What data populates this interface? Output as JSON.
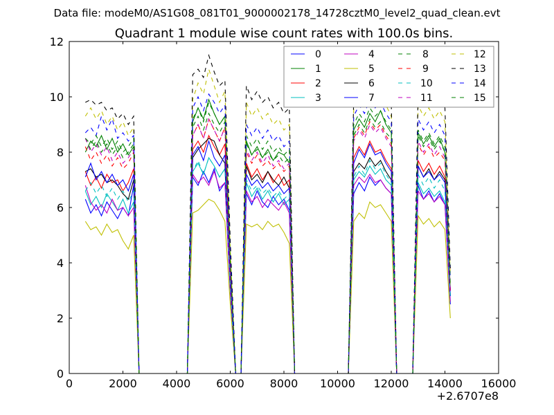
{
  "chart_data": {
    "type": "line",
    "suptitle": "Data file: modeM0/AS1G08_081T01_9000002178_14728cztM0_level2_quad_clean.evt",
    "title": "Quadrant 1 module wise count rates with 100.0s bins.",
    "xlabel": "",
    "ylabel": "",
    "x_offset_label": "+2.6707e8",
    "xlim": [
      0,
      16000
    ],
    "ylim": [
      0,
      12
    ],
    "xticks": [
      "0",
      "2000",
      "4000",
      "6000",
      "8000",
      "10000",
      "12000",
      "14000",
      "16000"
    ],
    "yticks": [
      "0",
      "2",
      "4",
      "6",
      "8",
      "10",
      "12"
    ],
    "legend_placement": "top-right",
    "legend_columns": 4,
    "x": [
      600,
      800,
      1000,
      1200,
      1400,
      1600,
      1800,
      2000,
      2200,
      2400,
      2600,
      2800,
      3000,
      3200,
      3400,
      3600,
      3800,
      4000,
      4200,
      4400,
      4600,
      4800,
      5000,
      5200,
      5400,
      5600,
      5800,
      6000,
      6200,
      6400,
      6600,
      6800,
      7000,
      7200,
      7400,
      7600,
      7800,
      8000,
      8200,
      8400,
      8600,
      8800,
      9000,
      9200,
      9400,
      9600,
      9800,
      10000,
      10200,
      10400,
      10600,
      10800,
      11000,
      11200,
      11400,
      11600,
      11800,
      12000,
      12200,
      12400,
      12600,
      12800,
      13000,
      13200,
      13400,
      13600,
      13800,
      14000,
      14200
    ],
    "series": [
      {
        "name": "0",
        "color": "#0000ff",
        "dashed": false,
        "values": [
          6.3,
          5.8,
          6.1,
          5.7,
          6.2,
          5.9,
          5.6,
          6.0,
          5.7,
          6.8,
          0,
          0,
          0,
          0,
          0,
          0,
          0,
          0,
          0,
          0,
          7.1,
          6.8,
          7.3,
          6.9,
          7.4,
          6.6,
          6.9,
          3.0,
          0,
          0,
          6.5,
          6.1,
          6.6,
          6.2,
          6.0,
          6.4,
          6.1,
          6.3,
          5.9,
          0,
          0,
          0,
          0,
          0,
          0,
          0,
          0,
          0,
          0,
          0,
          6.5,
          6.9,
          6.6,
          7.1,
          6.8,
          7.0,
          6.7,
          6.5,
          0,
          0,
          0,
          0,
          6.8,
          6.3,
          6.6,
          6.2,
          6.5,
          6.1,
          2.5
        ]
      },
      {
        "name": "1",
        "color": "#008000",
        "dashed": false,
        "values": [
          8.0,
          8.4,
          8.2,
          8.6,
          8.1,
          8.5,
          8.0,
          8.3,
          7.9,
          8.2,
          0,
          0,
          0,
          0,
          0,
          0,
          0,
          0,
          0,
          0,
          9.1,
          9.6,
          9.2,
          9.9,
          9.4,
          9.0,
          9.3,
          4.0,
          0,
          0,
          8.4,
          7.9,
          8.2,
          7.8,
          8.1,
          7.7,
          8.0,
          7.9,
          7.6,
          0,
          0,
          0,
          0,
          0,
          0,
          0,
          0,
          0,
          0,
          0,
          8.8,
          9.2,
          8.9,
          9.4,
          9.1,
          9.5,
          9.0,
          8.7,
          0,
          0,
          0,
          0,
          8.7,
          8.3,
          8.6,
          8.2,
          8.5,
          8.0,
          3.0
        ]
      },
      {
        "name": "2",
        "color": "#ff0000",
        "dashed": false,
        "values": [
          7.3,
          6.8,
          7.1,
          6.7,
          7.2,
          6.9,
          7.0,
          6.6,
          6.9,
          7.4,
          0,
          0,
          0,
          0,
          0,
          0,
          0,
          0,
          0,
          0,
          8.1,
          8.4,
          8.0,
          8.6,
          8.2,
          7.9,
          8.3,
          3.5,
          0,
          0,
          7.6,
          7.1,
          7.4,
          7.0,
          7.3,
          6.9,
          7.2,
          6.8,
          7.0,
          0,
          0,
          0,
          0,
          0,
          0,
          0,
          0,
          0,
          0,
          0,
          7.8,
          8.2,
          7.9,
          8.4,
          8.0,
          8.1,
          7.7,
          7.4,
          0,
          0,
          0,
          0,
          7.7,
          7.3,
          7.6,
          7.2,
          7.5,
          7.1,
          3.0
        ]
      },
      {
        "name": "3",
        "color": "#00bfbf",
        "dashed": false,
        "values": [
          6.6,
          6.1,
          6.4,
          6.0,
          6.5,
          6.2,
          5.9,
          6.3,
          5.8,
          6.2,
          0,
          0,
          0,
          0,
          0,
          0,
          0,
          0,
          0,
          0,
          7.3,
          7.6,
          7.2,
          7.8,
          7.5,
          7.1,
          7.4,
          3.2,
          0,
          0,
          6.9,
          6.4,
          6.7,
          6.3,
          6.6,
          6.2,
          6.5,
          6.1,
          6.3,
          0,
          0,
          0,
          0,
          0,
          0,
          0,
          0,
          0,
          0,
          0,
          7.0,
          7.3,
          7.1,
          7.5,
          7.2,
          7.4,
          7.0,
          6.8,
          0,
          0,
          0,
          0,
          6.9,
          6.5,
          6.7,
          6.4,
          6.6,
          6.2,
          2.6
        ]
      },
      {
        "name": "4",
        "color": "#bf00bf",
        "dashed": false,
        "values": [
          6.8,
          6.2,
          5.9,
          6.1,
          5.8,
          6.3,
          5.9,
          6.0,
          5.7,
          6.0,
          0,
          0,
          0,
          0,
          0,
          0,
          0,
          0,
          0,
          0,
          7.2,
          6.9,
          7.1,
          6.8,
          7.3,
          6.7,
          6.9,
          3.0,
          0,
          0,
          6.6,
          6.2,
          6.4,
          6.0,
          6.3,
          6.1,
          5.9,
          6.2,
          5.8,
          0,
          0,
          0,
          0,
          0,
          0,
          0,
          0,
          0,
          0,
          0,
          6.8,
          7.1,
          6.9,
          7.2,
          6.9,
          7.0,
          6.7,
          6.5,
          0,
          0,
          0,
          0,
          6.6,
          6.3,
          6.5,
          6.2,
          6.4,
          6.1,
          2.6
        ]
      },
      {
        "name": "5",
        "color": "#bfbf00",
        "dashed": false,
        "values": [
          5.5,
          5.2,
          5.3,
          5.0,
          5.4,
          5.1,
          5.2,
          4.8,
          4.5,
          5.0,
          0,
          0,
          0,
          0,
          0,
          0,
          0,
          0,
          0,
          0,
          5.8,
          5.9,
          6.1,
          6.3,
          6.2,
          5.9,
          5.5,
          2.5,
          0,
          0,
          5.4,
          5.3,
          5.4,
          5.2,
          5.5,
          5.3,
          5.4,
          5.1,
          4.7,
          0,
          0,
          0,
          0,
          0,
          0,
          0,
          0,
          0,
          0,
          0,
          5.5,
          5.8,
          5.6,
          6.2,
          6.0,
          6.1,
          5.8,
          5.5,
          0,
          0,
          0,
          0,
          5.7,
          5.4,
          5.6,
          5.3,
          5.5,
          5.2,
          2.0
        ]
      },
      {
        "name": "6",
        "color": "#000000",
        "dashed": false,
        "values": [
          7.3,
          7.4,
          7.1,
          7.2,
          6.9,
          7.0,
          6.8,
          6.5,
          6.3,
          7.0,
          0,
          0,
          0,
          0,
          0,
          0,
          0,
          0,
          0,
          0,
          7.8,
          8.1,
          8.3,
          8.5,
          8.4,
          7.9,
          7.6,
          3.3,
          0,
          0,
          7.5,
          7.0,
          7.2,
          6.9,
          7.3,
          7.0,
          6.8,
          7.1,
          6.7,
          0,
          0,
          0,
          0,
          0,
          0,
          0,
          0,
          0,
          0,
          0,
          7.3,
          7.6,
          7.4,
          7.8,
          7.5,
          7.7,
          7.3,
          7.0,
          0,
          0,
          0,
          0,
          7.5,
          7.1,
          7.4,
          7.0,
          7.3,
          7.0,
          2.8
        ]
      },
      {
        "name": "7",
        "color": "#0000ff",
        "dashed": false,
        "values": [
          7.1,
          7.6,
          7.0,
          7.3,
          6.9,
          7.2,
          6.8,
          7.0,
          6.6,
          7.2,
          0,
          0,
          0,
          0,
          0,
          0,
          0,
          0,
          0,
          0,
          7.9,
          8.2,
          7.7,
          8.4,
          7.8,
          7.5,
          7.9,
          3.2,
          0,
          0,
          7.2,
          6.8,
          7.0,
          6.7,
          6.9,
          6.6,
          6.8,
          6.5,
          6.7,
          0,
          0,
          0,
          0,
          0,
          0,
          0,
          0,
          0,
          0,
          0,
          7.6,
          8.1,
          7.8,
          8.3,
          7.9,
          8.0,
          7.6,
          7.3,
          0,
          0,
          0,
          0,
          7.5,
          7.1,
          7.3,
          7.0,
          7.2,
          6.9,
          2.8
        ]
      },
      {
        "name": "8",
        "color": "#008000",
        "dashed": true,
        "values": [
          8.5,
          8.1,
          8.4,
          8.0,
          8.3,
          7.9,
          8.2,
          7.8,
          8.0,
          8.3,
          0,
          0,
          0,
          0,
          0,
          0,
          0,
          0,
          0,
          0,
          8.9,
          9.3,
          8.8,
          9.4,
          9.0,
          8.7,
          9.1,
          3.8,
          0,
          0,
          8.3,
          7.9,
          8.1,
          7.8,
          8.0,
          7.7,
          7.9,
          7.6,
          7.8,
          0,
          0,
          0,
          0,
          0,
          0,
          0,
          0,
          0,
          0,
          0,
          8.6,
          9.0,
          8.7,
          9.2,
          8.9,
          9.1,
          8.7,
          8.5,
          0,
          0,
          0,
          0,
          8.6,
          8.2,
          8.5,
          8.1,
          8.4,
          8.0,
          3.0
        ]
      },
      {
        "name": "9",
        "color": "#ff0000",
        "dashed": true,
        "values": [
          8.2,
          7.7,
          8.0,
          7.6,
          7.9,
          7.5,
          7.8,
          7.4,
          7.6,
          8.0,
          0,
          0,
          0,
          0,
          0,
          0,
          0,
          0,
          0,
          0,
          8.6,
          9.0,
          8.5,
          9.2,
          8.8,
          8.4,
          8.9,
          3.6,
          0,
          0,
          8.0,
          7.6,
          7.9,
          7.5,
          7.7,
          7.4,
          7.6,
          7.3,
          7.5,
          0,
          0,
          0,
          0,
          0,
          0,
          0,
          0,
          0,
          0,
          0,
          8.5,
          8.9,
          8.6,
          9.1,
          8.8,
          9.0,
          8.6,
          8.3,
          0,
          0,
          0,
          0,
          8.3,
          7.9,
          8.2,
          7.8,
          8.0,
          7.7,
          3.0
        ]
      },
      {
        "name": "10",
        "color": "#00bfbf",
        "dashed": true,
        "values": [
          6.6,
          6.9,
          6.5,
          6.8,
          6.4,
          6.7,
          6.3,
          6.6,
          6.2,
          6.6,
          0,
          0,
          0,
          0,
          0,
          0,
          0,
          0,
          0,
          0,
          7.3,
          7.7,
          7.2,
          7.8,
          7.5,
          7.1,
          7.4,
          3.2,
          0,
          0,
          7.0,
          6.6,
          6.8,
          6.5,
          6.7,
          6.4,
          6.6,
          6.3,
          6.5,
          0,
          0,
          0,
          0,
          0,
          0,
          0,
          0,
          0,
          0,
          0,
          7.1,
          7.5,
          7.2,
          7.7,
          7.4,
          7.6,
          7.2,
          6.9,
          0,
          0,
          0,
          0,
          7.2,
          6.8,
          7.1,
          6.7,
          7.0,
          6.6,
          2.8
        ]
      },
      {
        "name": "11",
        "color": "#bf00bf",
        "dashed": true,
        "values": [
          8.5,
          8.0,
          8.3,
          7.9,
          8.2,
          7.7,
          8.0,
          7.6,
          7.8,
          8.1,
          0,
          0,
          0,
          0,
          0,
          0,
          0,
          0,
          0,
          0,
          8.6,
          9.0,
          8.5,
          9.2,
          8.8,
          8.4,
          8.9,
          3.6,
          0,
          0,
          8.1,
          7.7,
          8.0,
          7.6,
          7.9,
          7.5,
          7.7,
          7.4,
          7.6,
          0,
          0,
          0,
          0,
          0,
          0,
          0,
          0,
          0,
          0,
          0,
          8.4,
          8.8,
          8.5,
          9.0,
          8.7,
          8.9,
          8.5,
          8.2,
          0,
          0,
          0,
          0,
          8.4,
          8.0,
          8.3,
          7.9,
          8.2,
          7.8,
          3.0
        ]
      },
      {
        "name": "12",
        "color": "#bfbf00",
        "dashed": true,
        "values": [
          9.3,
          9.6,
          9.2,
          9.5,
          9.0,
          9.3,
          8.8,
          9.1,
          8.6,
          8.9,
          0,
          0,
          0,
          0,
          0,
          0,
          0,
          0,
          0,
          0,
          9.9,
          10.5,
          10.1,
          11.0,
          10.4,
          9.8,
          10.2,
          4.5,
          0,
          0,
          9.8,
          9.3,
          9.6,
          9.2,
          9.4,
          9.0,
          9.2,
          8.8,
          9.0,
          0,
          0,
          0,
          0,
          0,
          0,
          0,
          0,
          0,
          0,
          0,
          9.6,
          10.0,
          9.7,
          10.2,
          9.9,
          10.1,
          9.7,
          9.3,
          0,
          0,
          0,
          0,
          9.7,
          9.3,
          9.6,
          9.2,
          9.5,
          9.1,
          3.5
        ]
      },
      {
        "name": "13",
        "color": "#000000",
        "dashed": true,
        "values": [
          9.8,
          9.9,
          9.7,
          9.8,
          9.5,
          9.6,
          9.2,
          9.4,
          9.0,
          9.3,
          0,
          0,
          0,
          0,
          0,
          0,
          0,
          0,
          0,
          0,
          10.8,
          11.0,
          10.7,
          11.5,
          10.9,
          10.4,
          10.6,
          4.8,
          0,
          0,
          10.4,
          9.9,
          10.2,
          9.8,
          10.0,
          9.6,
          9.8,
          9.4,
          9.6,
          0,
          0,
          0,
          0,
          0,
          0,
          0,
          0,
          0,
          0,
          0,
          10.0,
          10.4,
          10.1,
          10.9,
          10.3,
          10.5,
          10.1,
          9.8,
          0,
          0,
          0,
          0,
          10.2,
          9.8,
          10.1,
          9.7,
          10.0,
          9.6,
          3.8
        ]
      },
      {
        "name": "14",
        "color": "#0000ff",
        "dashed": true,
        "values": [
          8.7,
          8.9,
          8.6,
          9.3,
          8.8,
          9.2,
          8.5,
          8.7,
          8.4,
          8.6,
          0,
          0,
          0,
          0,
          0,
          0,
          0,
          0,
          0,
          0,
          9.6,
          10.0,
          9.5,
          10.1,
          9.8,
          9.4,
          9.7,
          4.2,
          0,
          0,
          9.0,
          8.6,
          8.9,
          8.5,
          8.8,
          8.4,
          8.6,
          8.2,
          8.4,
          0,
          0,
          0,
          0,
          0,
          0,
          0,
          0,
          0,
          0,
          0,
          9.3,
          9.7,
          9.4,
          9.9,
          9.6,
          9.8,
          9.4,
          9.1,
          0,
          0,
          0,
          0,
          9.2,
          8.8,
          9.1,
          8.7,
          9.0,
          8.6,
          3.4
        ]
      },
      {
        "name": "15",
        "color": "#008000",
        "dashed": true,
        "values": [
          8.5,
          8.3,
          8.6,
          8.2,
          8.5,
          8.1,
          8.4,
          8.0,
          8.2,
          8.5,
          0,
          0,
          0,
          0,
          0,
          0,
          0,
          0,
          0,
          0,
          9.2,
          9.6,
          9.1,
          9.8,
          9.4,
          9.0,
          9.3,
          4.0,
          0,
          0,
          8.6,
          8.2,
          8.5,
          8.1,
          8.4,
          8.0,
          8.2,
          7.9,
          8.1,
          0,
          0,
          0,
          0,
          0,
          0,
          0,
          0,
          0,
          0,
          0,
          9.0,
          9.4,
          9.1,
          9.6,
          9.3,
          9.5,
          9.1,
          8.8,
          0,
          0,
          0,
          0,
          8.8,
          8.4,
          8.7,
          8.3,
          8.6,
          8.2,
          3.2
        ]
      }
    ]
  }
}
